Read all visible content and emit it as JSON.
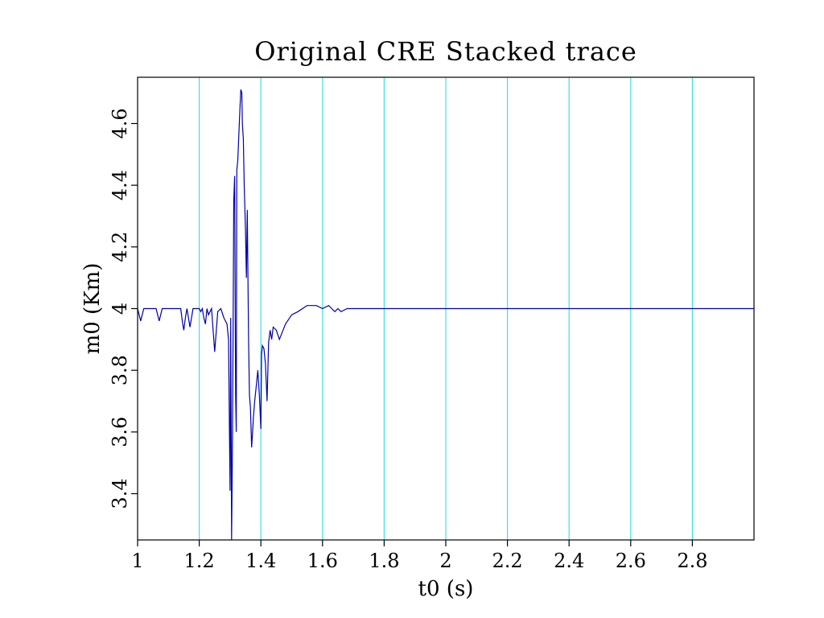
{
  "chart_data": {
    "type": "line",
    "title": "Original CRE Stacked trace",
    "xlabel": "t0 (s)",
    "ylabel": "m0 (Km)",
    "xlim": [
      1.0,
      3.0
    ],
    "ylim": [
      3.25,
      4.75
    ],
    "x_ticks": [
      1,
      1.2,
      1.4,
      1.6,
      1.8,
      2,
      2.2,
      2.4,
      2.6,
      2.8
    ],
    "x_tick_labels": [
      "1",
      "1.2",
      "1.4",
      "1.6",
      "1.8",
      "2",
      "2.2",
      "2.4",
      "2.6",
      "2.8"
    ],
    "y_ticks": [
      3.4,
      3.6,
      3.8,
      4.0,
      4.2,
      4.4,
      4.6
    ],
    "y_tick_labels": [
      "3.4",
      "3.6",
      "3.8",
      "4",
      "4.2",
      "4.4",
      "4.6"
    ],
    "grid": "vertical",
    "grid_color": "#3fe0e8",
    "line_color": "#0000aa",
    "series": [
      {
        "x": [
          1.0,
          1.005,
          1.01,
          1.02,
          1.04,
          1.06,
          1.065,
          1.07,
          1.08,
          1.1,
          1.12,
          1.14,
          1.145,
          1.15,
          1.155,
          1.16,
          1.17,
          1.18,
          1.19,
          1.2,
          1.205,
          1.21,
          1.215,
          1.22,
          1.225,
          1.23,
          1.24,
          1.25,
          1.26,
          1.27,
          1.28,
          1.29,
          1.295,
          1.3,
          1.302,
          1.305,
          1.308,
          1.31,
          1.312,
          1.315,
          1.318,
          1.32,
          1.322,
          1.325,
          1.328,
          1.33,
          1.332,
          1.335,
          1.338,
          1.34,
          1.343,
          1.346,
          1.35,
          1.353,
          1.356,
          1.36,
          1.363,
          1.366,
          1.37,
          1.373,
          1.376,
          1.38,
          1.385,
          1.39,
          1.395,
          1.4,
          1.402,
          1.405,
          1.41,
          1.415,
          1.42,
          1.425,
          1.43,
          1.435,
          1.44,
          1.45,
          1.46,
          1.48,
          1.5,
          1.52,
          1.55,
          1.58,
          1.6,
          1.62,
          1.63,
          1.64,
          1.65,
          1.66,
          1.68,
          1.7,
          1.75,
          1.8,
          1.85,
          1.9,
          1.95,
          2.0,
          2.05,
          2.1,
          2.15,
          2.2,
          2.25,
          2.3,
          2.35,
          2.4,
          2.45,
          2.5,
          2.55,
          2.6,
          2.65,
          2.7,
          2.75,
          2.8,
          2.85,
          2.9,
          2.95,
          3.0
        ],
        "values": [
          4.0,
          3.98,
          3.96,
          4.0,
          4.0,
          4.0,
          3.98,
          3.96,
          4.0,
          4.0,
          4.0,
          4.0,
          3.96,
          3.93,
          3.97,
          4.0,
          3.94,
          4.0,
          4.0,
          4.0,
          3.99,
          4.0,
          3.97,
          3.95,
          4.0,
          3.98,
          4.0,
          3.86,
          3.99,
          4.0,
          3.97,
          3.95,
          3.9,
          3.41,
          3.97,
          3.25,
          3.6,
          3.95,
          4.35,
          4.43,
          3.72,
          3.6,
          4.45,
          4.48,
          4.55,
          4.6,
          4.65,
          4.71,
          4.7,
          4.6,
          4.55,
          4.4,
          4.25,
          4.1,
          4.32,
          3.9,
          3.72,
          3.68,
          3.55,
          3.6,
          3.65,
          3.7,
          3.75,
          3.8,
          3.72,
          3.61,
          3.85,
          3.88,
          3.87,
          3.82,
          3.7,
          3.89,
          3.93,
          3.9,
          3.94,
          3.93,
          3.9,
          3.95,
          3.98,
          3.99,
          4.01,
          4.01,
          4.0,
          4.01,
          4.0,
          3.99,
          4.0,
          3.99,
          4.0,
          4.0,
          4.0,
          4.0,
          4.0,
          4.0,
          4.0,
          4.0,
          4.0,
          4.0,
          4.0,
          4.0,
          4.0,
          4.0,
          4.0,
          4.0,
          4.0,
          4.0,
          4.0,
          4.0,
          4.0,
          4.0,
          4.0,
          4.0,
          4.0,
          4.0,
          4.0,
          4.0
        ]
      }
    ]
  }
}
